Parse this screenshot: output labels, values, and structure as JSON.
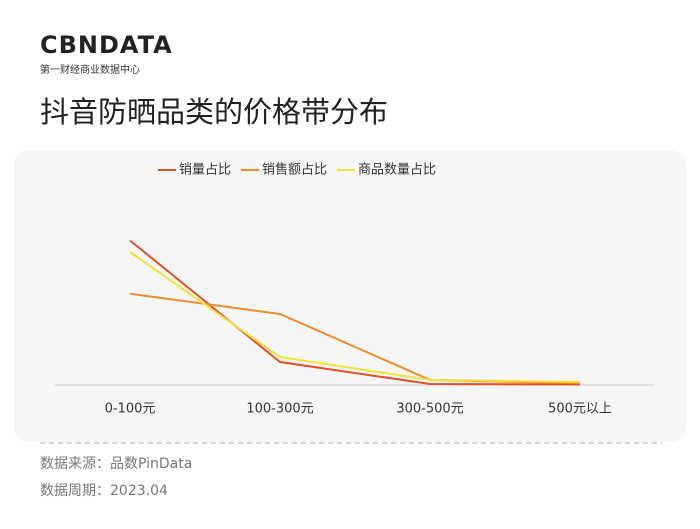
{
  "header": {
    "logo": "CBNDATA",
    "logo_subtitle": "第一财经商业数据中心",
    "title": "抖音防晒品类的价格带分布"
  },
  "chart_data": {
    "type": "line",
    "categories": [
      "0-100元",
      "100-300元",
      "300-500元",
      "500元以上"
    ],
    "series": [
      {
        "name": "销量占比",
        "color": "#e2502a",
        "values": [
          85.5,
          13.6,
          0.6,
          0.3
        ]
      },
      {
        "name": "销售额占比",
        "color": "#f08a2c",
        "values": [
          54,
          42,
          3,
          1
        ]
      },
      {
        "name": "商品数量占比",
        "color": "#f3e13a",
        "values": [
          78.7,
          16.6,
          3,
          1.8
        ]
      }
    ],
    "ylim": [
      0,
      100
    ],
    "legend": "top"
  },
  "footer": {
    "source": "数据来源：品数PinData",
    "period": "数据周期：2023.04"
  }
}
